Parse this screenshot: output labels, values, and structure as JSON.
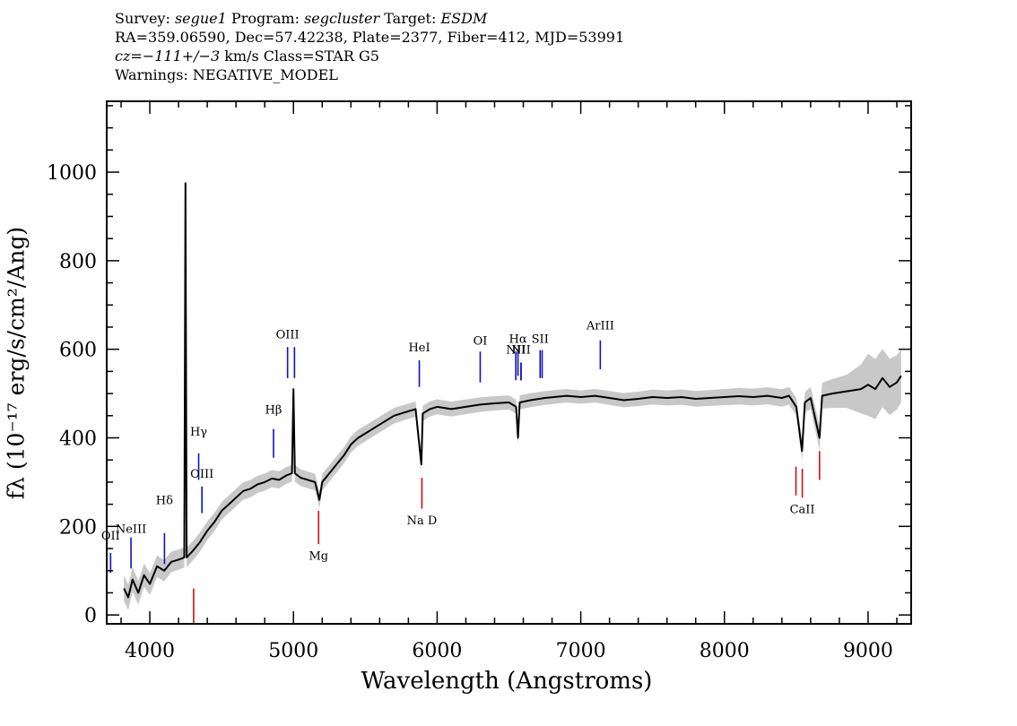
{
  "header": {
    "line1": {
      "survey_label": "Survey:",
      "survey": "segue1",
      "program_label": "Program:",
      "program": "segcluster",
      "target_label": "Target:",
      "target": "ESDM"
    },
    "line2": "RA=359.06590, Dec=57.42238, Plate=2377, Fiber=412, MJD=53991",
    "line3": {
      "cz": "cz=−111+/−3",
      "rest": "km/s Class=STAR G5"
    },
    "line4": "Warnings: NEGATIVE_MODEL"
  },
  "chart_data": {
    "type": "line",
    "xlabel": "Wavelength (Angstroms)",
    "ylabel": "fλ (10⁻¹⁷ erg/s/cm²/Ang)",
    "xlim": [
      3700,
      9300
    ],
    "ylim": [
      -20,
      1160
    ],
    "x_ticks": [
      4000,
      5000,
      6000,
      7000,
      8000,
      9000
    ],
    "y_ticks": [
      0,
      200,
      400,
      600,
      800,
      1000
    ],
    "series": [
      {
        "name": "flux",
        "color": "#000000",
        "points": [
          [
            3820,
            60
          ],
          [
            3850,
            40
          ],
          [
            3880,
            80
          ],
          [
            3920,
            50
          ],
          [
            3960,
            90
          ],
          [
            4000,
            70
          ],
          [
            4050,
            110
          ],
          [
            4100,
            100
          ],
          [
            4150,
            120
          ],
          [
            4200,
            125
          ],
          [
            4240,
            130
          ],
          [
            4248,
            975
          ],
          [
            4256,
            130
          ],
          [
            4300,
            145
          ],
          [
            4350,
            165
          ],
          [
            4400,
            190
          ],
          [
            4450,
            210
          ],
          [
            4500,
            235
          ],
          [
            4550,
            250
          ],
          [
            4600,
            265
          ],
          [
            4650,
            280
          ],
          [
            4700,
            285
          ],
          [
            4750,
            295
          ],
          [
            4800,
            300
          ],
          [
            4850,
            308
          ],
          [
            4900,
            305
          ],
          [
            4950,
            315
          ],
          [
            4990,
            320
          ],
          [
            5000,
            510
          ],
          [
            5010,
            320
          ],
          [
            5050,
            310
          ],
          [
            5100,
            305
          ],
          [
            5150,
            300
          ],
          [
            5180,
            260
          ],
          [
            5200,
            300
          ],
          [
            5250,
            320
          ],
          [
            5300,
            340
          ],
          [
            5350,
            360
          ],
          [
            5400,
            385
          ],
          [
            5450,
            400
          ],
          [
            5500,
            410
          ],
          [
            5600,
            430
          ],
          [
            5700,
            450
          ],
          [
            5800,
            460
          ],
          [
            5850,
            465
          ],
          [
            5890,
            340
          ],
          [
            5900,
            455
          ],
          [
            5950,
            465
          ],
          [
            6000,
            470
          ],
          [
            6100,
            465
          ],
          [
            6200,
            470
          ],
          [
            6300,
            475
          ],
          [
            6400,
            478
          ],
          [
            6500,
            480
          ],
          [
            6550,
            470
          ],
          [
            6563,
            400
          ],
          [
            6575,
            480
          ],
          [
            6650,
            485
          ],
          [
            6750,
            490
          ],
          [
            6900,
            495
          ],
          [
            7000,
            492
          ],
          [
            7100,
            495
          ],
          [
            7200,
            490
          ],
          [
            7300,
            485
          ],
          [
            7400,
            488
          ],
          [
            7500,
            492
          ],
          [
            7600,
            490
          ],
          [
            7700,
            492
          ],
          [
            7800,
            488
          ],
          [
            7900,
            490
          ],
          [
            8000,
            492
          ],
          [
            8100,
            494
          ],
          [
            8200,
            492
          ],
          [
            8300,
            495
          ],
          [
            8400,
            490
          ],
          [
            8450,
            495
          ],
          [
            8500,
            470
          ],
          [
            8540,
            370
          ],
          [
            8560,
            480
          ],
          [
            8600,
            490
          ],
          [
            8662,
            400
          ],
          [
            8680,
            495
          ],
          [
            8750,
            500
          ],
          [
            8850,
            505
          ],
          [
            8950,
            510
          ],
          [
            9000,
            520
          ],
          [
            9050,
            510
          ],
          [
            9100,
            535
          ],
          [
            9150,
            515
          ],
          [
            9200,
            525
          ],
          [
            9230,
            540
          ]
        ]
      }
    ],
    "uncertainty_band": {
      "color": "#c8c8c8",
      "widths": [
        [
          3800,
          30
        ],
        [
          4000,
          25
        ],
        [
          4500,
          20
        ],
        [
          5500,
          18
        ],
        [
          7000,
          15
        ],
        [
          8500,
          20
        ],
        [
          8900,
          40
        ],
        [
          9000,
          70
        ],
        [
          9230,
          60
        ]
      ]
    },
    "emission_lines": [
      {
        "label": "OII",
        "wavelength": 3727,
        "y_range": [
          95,
          140
        ],
        "label_y": 170
      },
      {
        "label": "NeIII",
        "wavelength": 3869,
        "y_range": [
          105,
          175
        ],
        "label_y": 185
      },
      {
        "label": "Hδ",
        "wavelength": 4102,
        "y_range": [
          115,
          185
        ],
        "label_y": 250
      },
      {
        "label": "Hγ",
        "wavelength": 4340,
        "y_range": [
          305,
          365
        ],
        "label_y": 405
      },
      {
        "label": "OIII",
        "wavelength": 4363,
        "y_range": [
          230,
          290
        ],
        "label_y": 310
      },
      {
        "label": "Hβ",
        "wavelength": 4861,
        "y_range": [
          355,
          420
        ],
        "label_y": 455
      },
      {
        "label": "OIII",
        "wavelength": 4959,
        "y_range": [
          535,
          605
        ],
        "label_y": 625
      },
      {
        "label": "",
        "wavelength": 5007,
        "y_range": [
          535,
          605
        ],
        "label_y": 625
      },
      {
        "label": "HeI",
        "wavelength": 5876,
        "y_range": [
          515,
          575
        ],
        "label_y": 595
      },
      {
        "label": "OI",
        "wavelength": 6300,
        "y_range": [
          525,
          595
        ],
        "label_y": 610
      },
      {
        "label": "NII",
        "wavelength": 6548,
        "y_range": [
          530,
          595
        ],
        "label_y": 590
      },
      {
        "label": "Hα",
        "wavelength": 6563,
        "y_range": [
          540,
          598
        ],
        "label_y": 615
      },
      {
        "label": "",
        "wavelength": 6584,
        "y_range": [
          530,
          570
        ],
        "label_y": 590
      },
      {
        "label": "NII",
        "wavelength": 6584,
        "y_range": [
          530,
          570
        ],
        "label_y": 590
      },
      {
        "label": "SII",
        "wavelength": 6717,
        "y_range": [
          535,
          598
        ],
        "label_y": 615
      },
      {
        "label": "",
        "wavelength": 6731,
        "y_range": [
          535,
          598
        ],
        "label_y": 615
      },
      {
        "label": "ArIII",
        "wavelength": 7136,
        "y_range": [
          555,
          620
        ],
        "label_y": 645
      }
    ],
    "absorption_lines": [
      {
        "label": "",
        "wavelength": 4305,
        "y_range": [
          -20,
          60
        ],
        "label_y": null
      },
      {
        "label": "Mg",
        "wavelength": 5175,
        "y_range": [
          160,
          235
        ],
        "label_y": 125
      },
      {
        "label": "Na D",
        "wavelength": 5894,
        "y_range": [
          240,
          310
        ],
        "label_y": 205
      },
      {
        "label": "",
        "wavelength": 8498,
        "y_range": [
          270,
          335
        ],
        "label_y": null
      },
      {
        "label": "CaII",
        "wavelength": 8542,
        "y_range": [
          265,
          330
        ],
        "label_y": 230
      },
      {
        "label": "",
        "wavelength": 8662,
        "y_range": [
          305,
          370
        ],
        "label_y": null
      }
    ]
  }
}
